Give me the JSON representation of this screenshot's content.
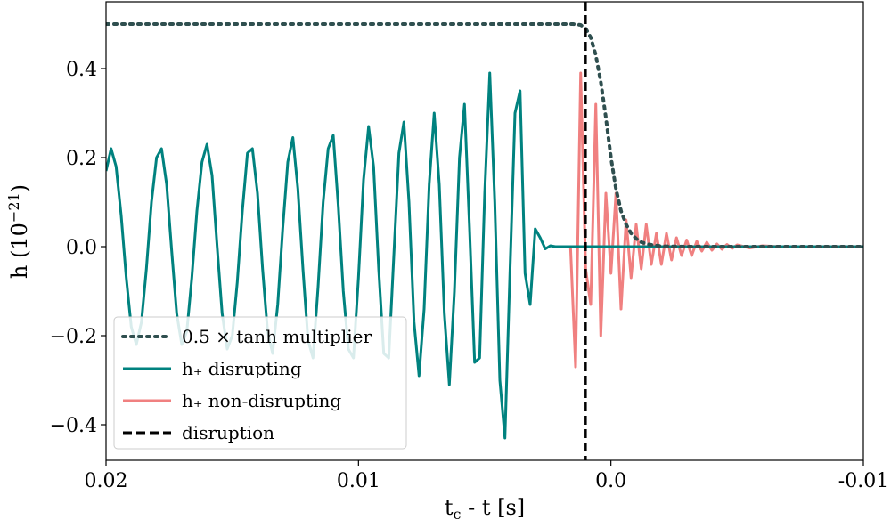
{
  "chart_data": {
    "type": "line",
    "title": "",
    "xlabel": "t_c - t [s]",
    "ylabel": "h (10^-21)",
    "xlim": [
      0.02,
      -0.01
    ],
    "ylim": [
      -0.48,
      0.55
    ],
    "x_ticks": [
      0.02,
      0.01,
      0.0,
      -0.01
    ],
    "x_tick_labels": [
      "0.02",
      "0.01",
      "0.0",
      "-0.01"
    ],
    "y_ticks": [
      -0.4,
      -0.2,
      0.0,
      0.2,
      0.4
    ],
    "y_tick_labels": [
      "−0.4",
      "−0.2",
      "0.0",
      "0.2",
      "0.4"
    ],
    "grid": false,
    "legend_position": "lower-left",
    "disruption_x": 0.001,
    "series": [
      {
        "name": "0.5 × tanh multiplier",
        "style": "dotted",
        "color": "#2f4f4f",
        "x": [
          0.02,
          0.0015,
          0.0012,
          0.001,
          0.0008,
          0.0006,
          0.0004,
          0.0002,
          0.0,
          -0.0002,
          -0.0004,
          -0.0006,
          -0.0008,
          -0.001,
          -0.0012,
          -0.0015,
          -0.002,
          -0.003,
          -0.01
        ],
        "y": [
          0.5,
          0.5,
          0.498,
          0.49,
          0.47,
          0.43,
          0.37,
          0.29,
          0.2,
          0.13,
          0.08,
          0.05,
          0.03,
          0.018,
          0.01,
          0.005,
          0.001,
          0.0,
          0.0
        ]
      },
      {
        "name": "h₊ disrupting",
        "style": "solid",
        "color": "#00827f",
        "x": [
          0.02,
          0.0198,
          0.0196,
          0.0194,
          0.0192,
          0.019,
          0.0188,
          0.0186,
          0.0184,
          0.0182,
          0.018,
          0.0178,
          0.0176,
          0.0174,
          0.0172,
          0.017,
          0.0168,
          0.0166,
          0.0164,
          0.0162,
          0.016,
          0.0158,
          0.0156,
          0.0154,
          0.0152,
          0.015,
          0.0148,
          0.0146,
          0.0144,
          0.0142,
          0.014,
          0.0138,
          0.0136,
          0.0134,
          0.0132,
          0.013,
          0.0128,
          0.0126,
          0.0124,
          0.0122,
          0.012,
          0.0118,
          0.0116,
          0.0114,
          0.0112,
          0.011,
          0.0108,
          0.0106,
          0.0104,
          0.0102,
          0.01,
          0.0098,
          0.0096,
          0.0094,
          0.0092,
          0.009,
          0.0088,
          0.0086,
          0.0084,
          0.0082,
          0.008,
          0.0078,
          0.0076,
          0.0074,
          0.0072,
          0.007,
          0.0068,
          0.0066,
          0.0064,
          0.0062,
          0.006,
          0.0058,
          0.0056,
          0.0054,
          0.0052,
          0.005,
          0.0048,
          0.0046,
          0.0044,
          0.0042,
          0.004,
          0.0038,
          0.0036,
          0.0034,
          0.0032,
          0.003,
          0.0028,
          0.0026,
          0.0024,
          0.0022,
          0.002,
          0.0018,
          0.0016,
          0.0014,
          0.0012,
          0.001,
          0.0008,
          0.0006,
          0.0004,
          0.0002,
          0.0,
          -0.0002,
          -0.0004,
          -0.0006,
          -0.0008,
          -0.001,
          -0.002,
          -0.005,
          -0.01
        ],
        "y": [
          0.17,
          0.22,
          0.18,
          0.07,
          -0.07,
          -0.18,
          -0.22,
          -0.17,
          -0.05,
          0.1,
          0.2,
          0.22,
          0.14,
          -0.01,
          -0.15,
          -0.22,
          -0.19,
          -0.07,
          0.08,
          0.19,
          0.23,
          0.16,
          0.0,
          -0.15,
          -0.23,
          -0.2,
          -0.08,
          0.08,
          0.21,
          0.22,
          0.12,
          -0.05,
          -0.19,
          -0.24,
          -0.13,
          0.04,
          0.19,
          0.245,
          0.13,
          -0.05,
          -0.21,
          -0.25,
          -0.09,
          0.1,
          0.22,
          0.25,
          0.09,
          -0.1,
          -0.23,
          -0.25,
          -0.07,
          0.15,
          0.27,
          0.18,
          -0.05,
          -0.24,
          -0.25,
          -0.02,
          0.21,
          0.28,
          0.1,
          -0.17,
          -0.29,
          -0.14,
          0.14,
          0.3,
          0.14,
          -0.15,
          -0.31,
          -0.1,
          0.2,
          0.32,
          0.04,
          -0.26,
          -0.25,
          0.12,
          0.39,
          0.1,
          -0.3,
          -0.43,
          -0.06,
          0.3,
          0.35,
          -0.06,
          -0.13,
          0.04,
          0.02,
          -0.005,
          0.002,
          0.0,
          0.0,
          0.0,
          0.0,
          0.0,
          0.0,
          0.0,
          0.0,
          0.0,
          0.0,
          0.0,
          0.0,
          0.0,
          0.0,
          0.0,
          0.0,
          0.0,
          0.0,
          0.0,
          0.0
        ]
      },
      {
        "name": "h₊ non-disrupting",
        "style": "solid",
        "color": "#f08080",
        "x": [
          0.0016,
          0.0014,
          0.0012,
          0.001,
          0.0008,
          0.0006,
          0.0004,
          0.0002,
          0.0,
          -0.0002,
          -0.0004,
          -0.0006,
          -0.0008,
          -0.001,
          -0.0012,
          -0.0014,
          -0.0016,
          -0.0018,
          -0.002,
          -0.0022,
          -0.0024,
          -0.0026,
          -0.0028,
          -0.003,
          -0.0032,
          -0.0034,
          -0.0036,
          -0.0038,
          -0.004,
          -0.0042,
          -0.0044,
          -0.0046,
          -0.0048,
          -0.005,
          -0.0055,
          -0.006,
          -0.007,
          -0.008,
          -0.01
        ],
        "y": [
          0.0,
          -0.27,
          0.39,
          -0.05,
          -0.13,
          0.32,
          -0.2,
          0.12,
          -0.06,
          0.12,
          -0.14,
          0.06,
          -0.07,
          0.05,
          -0.05,
          0.05,
          -0.04,
          0.03,
          -0.04,
          0.03,
          -0.03,
          0.02,
          -0.02,
          0.015,
          -0.02,
          0.012,
          -0.01,
          0.01,
          -0.008,
          0.006,
          -0.006,
          0.005,
          -0.004,
          0.004,
          -0.003,
          0.002,
          -0.001,
          0.0,
          0.0
        ]
      }
    ],
    "legend": [
      {
        "label": "0.5 × tanh multiplier",
        "style": "dotted",
        "color": "#2f4f4f"
      },
      {
        "label": "h₊ disrupting",
        "style": "solid",
        "color": "#00827f"
      },
      {
        "label": "h₊ non-disrupting",
        "style": "solid",
        "color": "#f08080"
      },
      {
        "label": "disruption",
        "style": "dashed",
        "color": "#000000"
      }
    ]
  }
}
